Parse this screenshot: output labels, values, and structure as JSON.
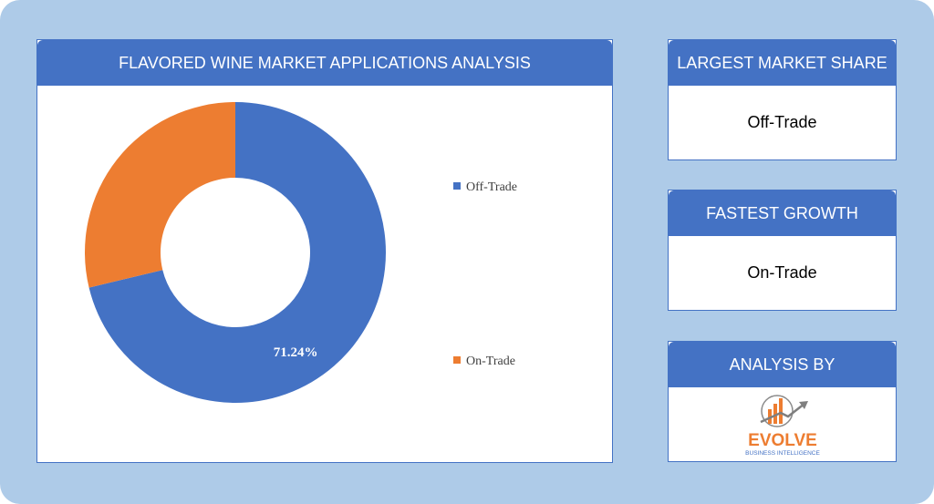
{
  "chart_panel": {
    "title": "FLAVORED WINE MARKET APPLICATIONS ANALYSIS"
  },
  "chart_data": {
    "type": "pie",
    "donut": true,
    "categories": [
      "Off-Trade",
      "On-Trade"
    ],
    "values": [
      71.24,
      28.76
    ],
    "colors": [
      "#4472c4",
      "#ed7d31"
    ],
    "data_labels": [
      "71.24%",
      ""
    ],
    "legend": {
      "placement": "right",
      "entries": [
        "Off-Trade",
        "On-Trade"
      ]
    }
  },
  "largest_share": {
    "title": "LARGEST MARKET SHARE",
    "value": "Off-Trade"
  },
  "fastest_growth": {
    "title": "FASTEST GROWTH",
    "value": "On-Trade"
  },
  "analysis_by": {
    "title": "ANALYSIS BY",
    "logo_text": "EVOLVE",
    "logo_subtext": "BUSINESS INTELLIGENCE"
  },
  "colors": {
    "frame": "#aecbe8",
    "accent": "#4472c4",
    "orange": "#ed7d31"
  }
}
